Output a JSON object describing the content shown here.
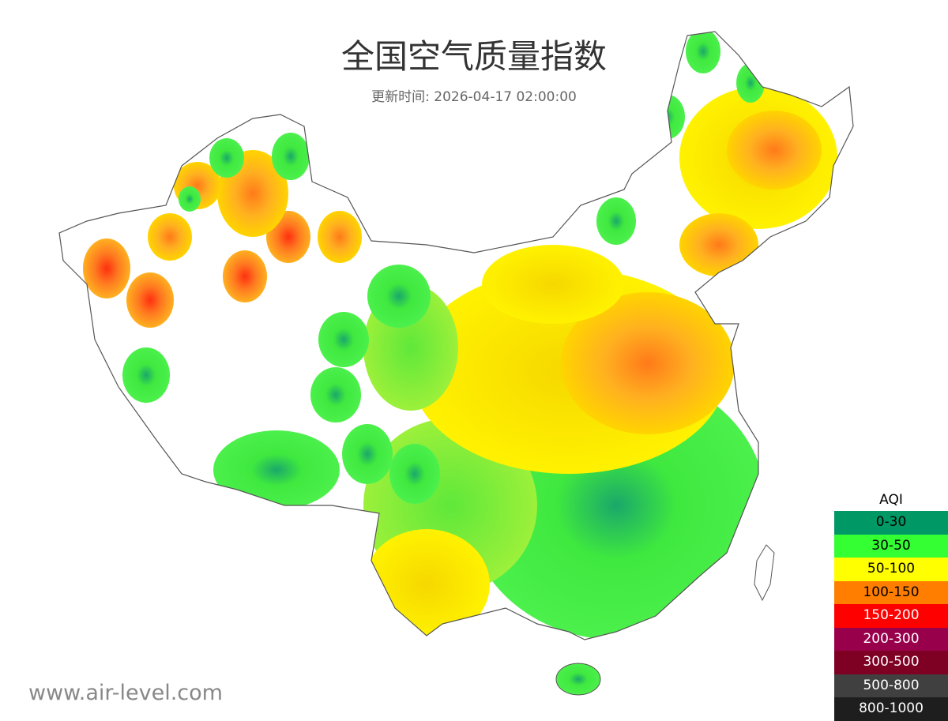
{
  "title": "全国空气质量指数",
  "subtitle": "更新时间: 2026-04-17 02:00:00",
  "watermark": "www.air-level.com",
  "legend": {
    "title": "AQI",
    "items": [
      {
        "label": "0-30",
        "color": "#009966",
        "text_color": "#000000"
      },
      {
        "label": "30-50",
        "color": "#33ff33",
        "text_color": "#000000"
      },
      {
        "label": "50-100",
        "color": "#ffff00",
        "text_color": "#000000"
      },
      {
        "label": "100-150",
        "color": "#ff7e00",
        "text_color": "#000000"
      },
      {
        "label": "150-200",
        "color": "#ff0000",
        "text_color": "#ffffff"
      },
      {
        "label": "200-300",
        "color": "#99004c",
        "text_color": "#ffffff"
      },
      {
        "label": "300-500",
        "color": "#7e0023",
        "text_color": "#ffffff"
      },
      {
        "label": "500-800",
        "color": "#404040",
        "text_color": "#ffffff"
      },
      {
        "label": "800-1000",
        "color": "#1e1e1e",
        "text_color": "#ffffff"
      }
    ]
  }
}
